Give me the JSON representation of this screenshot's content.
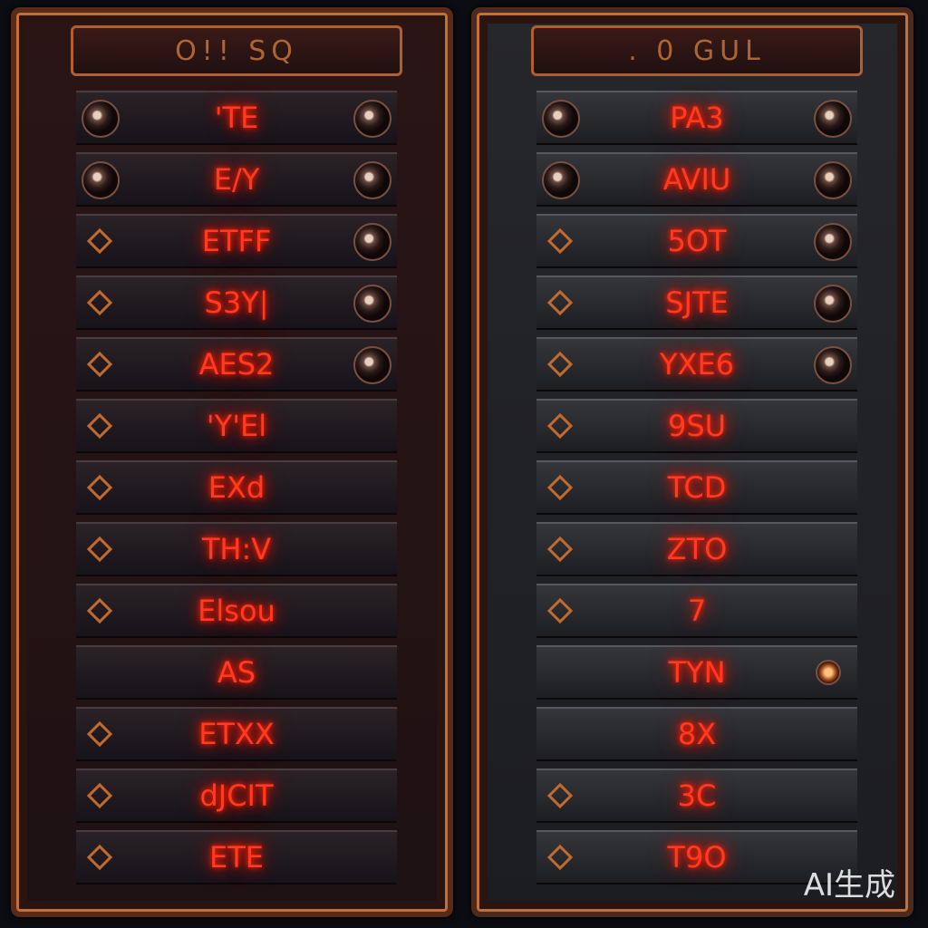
{
  "panels": [
    {
      "id": "left",
      "header": "O!! SQ",
      "rows": [
        {
          "label": "'TE",
          "left": "knob",
          "right": "knob"
        },
        {
          "label": "E/Y",
          "left": "knob",
          "right": "knob"
        },
        {
          "label": "ETFF",
          "left": "diamond",
          "right": "knob"
        },
        {
          "label": "S3Y|",
          "left": "diamond",
          "right": "knob"
        },
        {
          "label": "AES2",
          "left": "diamond",
          "right": "knob"
        },
        {
          "label": "'Y'El",
          "left": "diamond"
        },
        {
          "label": "EXd",
          "left": "diamond"
        },
        {
          "label": "TH:V",
          "left": "diamond"
        },
        {
          "label": "Elsou",
          "left": "diamond"
        },
        {
          "label": "AS",
          "left": ""
        },
        {
          "label": "ETXX",
          "left": "diamond"
        },
        {
          "label": "dJCIT",
          "left": "diamond"
        },
        {
          "label": "ETE",
          "left": "diamond"
        }
      ]
    },
    {
      "id": "right",
      "header": ". 0   GUL",
      "rows": [
        {
          "label": "PA3",
          "left": "knob",
          "right": "knob"
        },
        {
          "label": "AVIU",
          "left": "knob",
          "right": "knob"
        },
        {
          "label": "5OT",
          "left": "diamond",
          "right": "knob"
        },
        {
          "label": "SJTE",
          "left": "diamond",
          "right": "knob"
        },
        {
          "label": "YXE6",
          "left": "diamond",
          "right": "knob"
        },
        {
          "label": "9SU",
          "left": "diamond"
        },
        {
          "label": "TCD",
          "left": "diamond"
        },
        {
          "label": "ZTO",
          "left": "diamond"
        },
        {
          "label": "7",
          "left": "diamond"
        },
        {
          "label": "TYN",
          "left": "",
          "right": "small-knob"
        },
        {
          "label": "8X",
          "left": ""
        },
        {
          "label": "3C",
          "left": "diamond"
        },
        {
          "label": "T9O",
          "left": "diamond"
        }
      ]
    }
  ],
  "colors": {
    "label": "#ff3a20",
    "frame": "#c0703a"
  },
  "watermark": "AI生成"
}
